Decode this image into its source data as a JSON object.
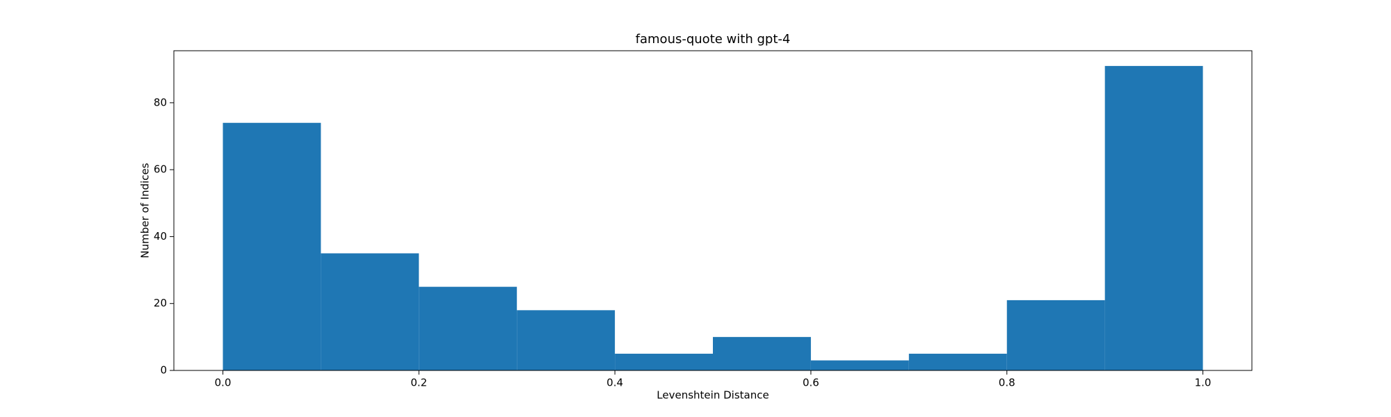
{
  "chart_data": {
    "type": "histogram",
    "title": "famous-quote with gpt-4",
    "xlabel": "Levenshtein Distance",
    "ylabel": "Number of Indices",
    "bins": [
      0.0,
      0.1,
      0.2,
      0.3,
      0.4,
      0.5,
      0.6,
      0.7,
      0.8,
      0.9,
      1.0
    ],
    "values": [
      74,
      35,
      25,
      18,
      5,
      10,
      3,
      5,
      21,
      91
    ],
    "color": "#1f77b4",
    "xlim": [
      -0.05,
      1.05
    ],
    "xticks": [
      {
        "value": 0,
        "label": "0.0"
      },
      0.2,
      0.4,
      0.6,
      0.8,
      {
        "value": 1,
        "label": "1.0"
      }
    ],
    "ylim": [
      0,
      95.55
    ],
    "yticks": [
      0,
      20,
      40,
      60,
      80
    ]
  }
}
